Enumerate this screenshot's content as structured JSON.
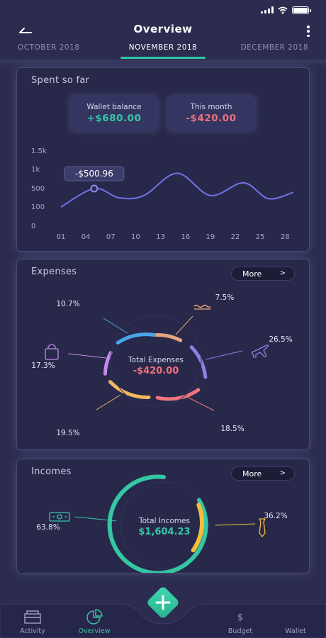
{
  "header": {
    "title": "Overview",
    "months": {
      "prev": "OCTOBER 2018",
      "current": "NOVEMBER 2018",
      "next": "DECEMBER 2018"
    }
  },
  "spent": {
    "title": "Spent so far",
    "wallet_label": "Wallet balance",
    "wallet_value": "+$680.00",
    "month_label": "This month",
    "month_value": "-$420.00",
    "tooltip": "-$500.96"
  },
  "chart_data": {
    "type": "line",
    "title": "",
    "xlabel": "",
    "ylabel": "",
    "x_ticks": [
      "01",
      "04",
      "07",
      "10",
      "13",
      "16",
      "19",
      "22",
      "25",
      "28"
    ],
    "y_ticks": [
      "0",
      "100",
      "500",
      "1k",
      "1.5k"
    ],
    "series": [
      {
        "values": [
          {
            "x": 1,
            "y": 100
          },
          {
            "x": 5,
            "y": 500
          },
          {
            "x": 8,
            "y": 300
          },
          {
            "x": 11,
            "y": 350
          },
          {
            "x": 15,
            "y": 900
          },
          {
            "x": 19,
            "y": 350
          },
          {
            "x": 23,
            "y": 650
          },
          {
            "x": 26,
            "y": 280
          },
          {
            "x": 29,
            "y": 420
          }
        ]
      }
    ],
    "highlight": {
      "x": 5,
      "label": "-$500.96"
    },
    "color": "#6f74e8",
    "grid": false
  },
  "expenses": {
    "title": "Expenses",
    "more": "More",
    "center_label": "Total Expenses",
    "center_value": "-$420.00",
    "slices": [
      {
        "pct": "7.5%",
        "color": "#e8a47a",
        "icon": "food-icon"
      },
      {
        "pct": "26.5%",
        "color": "#8f7fe2",
        "icon": "airplane-icon"
      },
      {
        "pct": "18.5%",
        "color": "#ef7580",
        "icon": ""
      },
      {
        "pct": "19.5%",
        "color": "#f1b860",
        "icon": ""
      },
      {
        "pct": "17.3%",
        "color": "#c38aea",
        "icon": "shopping-bag-icon"
      },
      {
        "pct": "10.7%",
        "color": "#4aa6ea",
        "icon": ""
      }
    ]
  },
  "incomes": {
    "title": "Incomes",
    "more": "More",
    "center_label": "Total Incomes",
    "center_value": "$1,604.23",
    "slices": [
      {
        "pct": "63.8%",
        "color": "#35c6a4",
        "icon": "cash-icon"
      },
      {
        "pct": "36.2%",
        "color": "#f4bd3c",
        "icon": "tie-icon"
      }
    ]
  },
  "nav": {
    "activity": "Activity",
    "overview": "Overview",
    "budget": "Budget",
    "wallet": "Wallet",
    "budget_symbol": "$"
  },
  "colors": {
    "accent": "#35c6a4",
    "negative": "#f0707a",
    "background": "#2b2c4f",
    "card": "#28294a"
  }
}
